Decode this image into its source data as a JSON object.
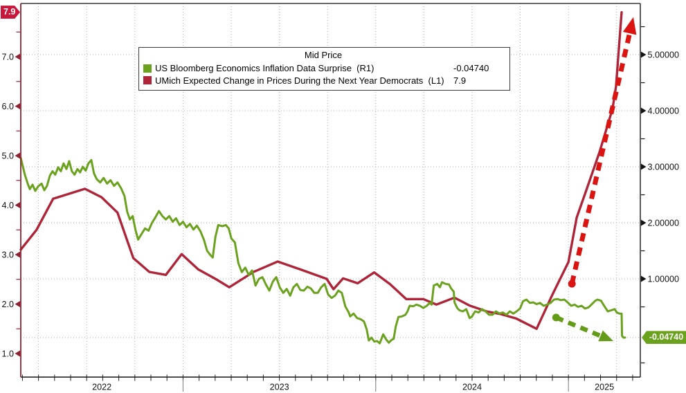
{
  "chart_data": {
    "type": "line",
    "title": "Mid Price",
    "colors": {
      "green_series": "#6aa11d",
      "red_series": "#ae2438",
      "red_arrow": "#dc1411",
      "green_arrow": "#649b18",
      "grid": "#ababab",
      "frame": "#141414",
      "left_axis": "#8f2232",
      "badge_left_bg": "#c9173c",
      "badge_right_bg": "#6aa11d",
      "year_divider": "#777777"
    },
    "legend": {
      "title": "Mid Price",
      "position": "top-center",
      "entries": [
        {
          "label": "US Bloomberg Economics Inflation Data Surprise  (R1)",
          "value": "-0.04740",
          "color": "#6aa11d",
          "axis": "right"
        },
        {
          "label": "UMich Expected Change in Prices During the Next Year Democrats  (L1)",
          "value": "7.9",
          "color": "#ae2438",
          "axis": "left"
        }
      ]
    },
    "x_axis": {
      "type": "time-years",
      "start": 2022.158,
      "end": 2025.373,
      "grid": "quarterly-dotted",
      "year_labels": [
        "2022",
        "2023",
        "2024",
        "2025"
      ],
      "year_boundaries": [
        2023,
        2024,
        2025
      ]
    },
    "left_axis": {
      "min": 0.524,
      "max": 8.077,
      "ticks": [
        7,
        6,
        5,
        4,
        3,
        2,
        1
      ],
      "tick_labels": [
        "7.0",
        "6.0",
        "5.0",
        "4.0",
        "3.0",
        "2.0",
        "1.0"
      ],
      "minor_ticks": [
        1.5,
        2.5,
        3.5,
        4.5,
        5.5,
        6.5,
        7.5
      ],
      "last_value": 7.9,
      "last_value_label": "7.9"
    },
    "right_axis": {
      "min": -0.753,
      "max": 5.914,
      "ticks": [
        5,
        4,
        3,
        2,
        1
      ],
      "tick_labels": [
        "5.00000",
        "4.00000",
        "3.00000",
        "2.00000",
        "1.00000"
      ],
      "minor_ticks": [
        -0.5,
        0.5,
        1.5,
        2.5,
        3.5,
        4.5,
        5.5
      ],
      "grid": true,
      "last_price_line": true,
      "last_value": -0.0474,
      "last_value_label": "-0.04740"
    },
    "series": [
      {
        "name": "UMich Expected Change in Prices During the Next Year Democrats",
        "data_name": "series-line-umich-expectations",
        "axis": "left",
        "color": "#ae2438",
        "width": 3.4,
        "points": [
          [
            2022.158,
            3.1
          ],
          [
            2022.24,
            3.5
          ],
          [
            2022.326,
            4.13
          ],
          [
            2022.409,
            4.23
          ],
          [
            2022.491,
            4.33
          ],
          [
            2022.577,
            4.16
          ],
          [
            2022.66,
            3.85
          ],
          [
            2022.742,
            2.93
          ],
          [
            2022.825,
            2.65
          ],
          [
            2022.911,
            2.59
          ],
          [
            2022.993,
            3.01
          ],
          [
            2023.079,
            2.7
          ],
          [
            2023.168,
            2.51
          ],
          [
            2023.24,
            2.34
          ],
          [
            2023.366,
            2.65
          ],
          [
            2023.491,
            2.86
          ],
          [
            2023.609,
            2.7
          ],
          [
            2023.745,
            2.51
          ],
          [
            2023.781,
            2.3
          ],
          [
            2023.831,
            2.52
          ],
          [
            2023.906,
            2.42
          ],
          [
            2023.992,
            2.64
          ],
          [
            2024.075,
            2.4
          ],
          [
            2024.158,
            2.1
          ],
          [
            2024.247,
            2.1
          ],
          [
            2024.315,
            1.99
          ],
          [
            2024.409,
            2.13
          ],
          [
            2024.487,
            1.97
          ],
          [
            2024.577,
            1.85
          ],
          [
            2024.646,
            1.8
          ],
          [
            2024.728,
            1.71
          ],
          [
            2024.835,
            1.5
          ],
          [
            2024.918,
            2.2
          ],
          [
            2025.0,
            2.85
          ],
          [
            2025.043,
            3.75
          ],
          [
            2025.09,
            4.27
          ],
          [
            2025.161,
            5.07
          ],
          [
            2025.229,
            5.95
          ],
          [
            2025.247,
            6.4
          ],
          [
            2025.276,
            7.9
          ]
        ]
      },
      {
        "name": "US Bloomberg Economics Inflation Data Surprise",
        "data_name": "series-line-inflation-surprise",
        "axis": "right",
        "color": "#6aa11d",
        "width": 3,
        "points": [
          [
            2022.158,
            3.16
          ],
          [
            2022.169,
            3.0
          ],
          [
            2022.18,
            2.85
          ],
          [
            2022.194,
            2.7
          ],
          [
            2022.205,
            2.6
          ],
          [
            2022.219,
            2.68
          ],
          [
            2022.233,
            2.57
          ],
          [
            2022.248,
            2.65
          ],
          [
            2022.266,
            2.7
          ],
          [
            2022.28,
            2.58
          ],
          [
            2022.294,
            2.66
          ],
          [
            2022.309,
            2.84
          ],
          [
            2022.323,
            2.92
          ],
          [
            2022.337,
            2.86
          ],
          [
            2022.352,
            2.99
          ],
          [
            2022.366,
            2.92
          ],
          [
            2022.38,
            3.06
          ],
          [
            2022.395,
            2.96
          ],
          [
            2022.409,
            3.1
          ],
          [
            2022.423,
            2.92
          ],
          [
            2022.437,
            2.86
          ],
          [
            2022.452,
            2.96
          ],
          [
            2022.466,
            2.9
          ],
          [
            2022.48,
            3.0
          ],
          [
            2022.495,
            2.93
          ],
          [
            2022.509,
            3.06
          ],
          [
            2022.524,
            3.12
          ],
          [
            2022.538,
            2.88
          ],
          [
            2022.552,
            2.78
          ],
          [
            2022.57,
            2.72
          ],
          [
            2022.588,
            2.8
          ],
          [
            2022.606,
            2.7
          ],
          [
            2022.624,
            2.76
          ],
          [
            2022.642,
            2.66
          ],
          [
            2022.66,
            2.72
          ],
          [
            2022.678,
            2.62
          ],
          [
            2022.696,
            2.48
          ],
          [
            2022.71,
            2.2
          ],
          [
            2022.724,
            2.06
          ],
          [
            2022.739,
            2.12
          ],
          [
            2022.753,
            1.88
          ],
          [
            2022.767,
            1.7
          ],
          [
            2022.785,
            1.8
          ],
          [
            2022.803,
            1.9
          ],
          [
            2022.821,
            1.86
          ],
          [
            2022.839,
            2.0
          ],
          [
            2022.857,
            2.1
          ],
          [
            2022.875,
            2.21
          ],
          [
            2022.893,
            2.12
          ],
          [
            2022.911,
            2.06
          ],
          [
            2022.929,
            2.12
          ],
          [
            2022.946,
            2.02
          ],
          [
            2022.964,
            2.08
          ],
          [
            2022.982,
            1.96
          ],
          [
            2023.0,
            2.02
          ],
          [
            2023.018,
            1.92
          ],
          [
            2023.036,
            1.98
          ],
          [
            2023.054,
            1.88
          ],
          [
            2023.072,
            1.95
          ],
          [
            2023.09,
            1.85
          ],
          [
            2023.108,
            1.7
          ],
          [
            2023.125,
            1.5
          ],
          [
            2023.143,
            1.42
          ],
          [
            2023.154,
            1.38
          ],
          [
            2023.168,
            1.75
          ],
          [
            2023.183,
            1.96
          ],
          [
            2023.204,
            1.94
          ],
          [
            2023.222,
            1.96
          ],
          [
            2023.237,
            1.9
          ],
          [
            2023.251,
            1.72
          ],
          [
            2023.269,
            1.65
          ],
          [
            2023.287,
            1.28
          ],
          [
            2023.305,
            1.12
          ],
          [
            2023.323,
            1.2
          ],
          [
            2023.341,
            1.07
          ],
          [
            2023.358,
            1.15
          ],
          [
            2023.376,
            0.88
          ],
          [
            2023.394,
            1.0
          ],
          [
            2023.412,
            1.03
          ],
          [
            2023.43,
            0.9
          ],
          [
            2023.448,
            0.79
          ],
          [
            2023.466,
            0.95
          ],
          [
            2023.484,
            1.03
          ],
          [
            2023.502,
            0.85
          ],
          [
            2023.52,
            0.75
          ],
          [
            2023.538,
            0.82
          ],
          [
            2023.556,
            0.7
          ],
          [
            2023.573,
            0.85
          ],
          [
            2023.591,
            0.91
          ],
          [
            2023.609,
            0.8
          ],
          [
            2023.627,
            0.79
          ],
          [
            2023.645,
            0.86
          ],
          [
            2023.663,
            0.83
          ],
          [
            2023.681,
            0.75
          ],
          [
            2023.699,
            0.75
          ],
          [
            2023.717,
            0.85
          ],
          [
            2023.735,
            0.91
          ],
          [
            2023.753,
            0.72
          ],
          [
            2023.771,
            0.66
          ],
          [
            2023.789,
            0.7
          ],
          [
            2023.806,
            0.79
          ],
          [
            2023.824,
            0.75
          ],
          [
            2023.842,
            0.51
          ],
          [
            2023.86,
            0.4
          ],
          [
            2023.867,
            0.33
          ],
          [
            2023.885,
            0.38
          ],
          [
            2023.903,
            0.3
          ],
          [
            2023.921,
            0.28
          ],
          [
            2023.939,
            0.24
          ],
          [
            2023.953,
            0.1
          ],
          [
            2023.964,
            -0.1
          ],
          [
            2023.978,
            -0.05
          ],
          [
            2023.993,
            -0.12
          ],
          [
            2024.007,
            -0.11
          ],
          [
            2024.021,
            -0.15
          ],
          [
            2024.039,
            0.01
          ],
          [
            2024.054,
            -0.08
          ],
          [
            2024.068,
            -0.14
          ],
          [
            2024.082,
            -0.09
          ],
          [
            2024.093,
            -0.07
          ],
          [
            2024.104,
            0.15
          ],
          [
            2024.118,
            0.32
          ],
          [
            2024.136,
            0.33
          ],
          [
            2024.154,
            0.36
          ],
          [
            2024.165,
            0.42
          ],
          [
            2024.176,
            0.52
          ],
          [
            2024.194,
            0.51
          ],
          [
            2024.211,
            0.54
          ],
          [
            2024.229,
            0.52
          ],
          [
            2024.247,
            0.48
          ],
          [
            2024.265,
            0.52
          ],
          [
            2024.28,
            0.57
          ],
          [
            2024.29,
            0.54
          ],
          [
            2024.301,
            0.88
          ],
          [
            2024.319,
            0.91
          ],
          [
            2024.333,
            0.85
          ],
          [
            2024.344,
            0.94
          ],
          [
            2024.362,
            0.91
          ],
          [
            2024.38,
            0.9
          ],
          [
            2024.391,
            0.83
          ],
          [
            2024.405,
            0.77
          ],
          [
            2024.409,
            0.58
          ],
          [
            2024.423,
            0.48
          ],
          [
            2024.434,
            0.44
          ],
          [
            2024.452,
            0.42
          ],
          [
            2024.47,
            0.46
          ],
          [
            2024.487,
            0.3
          ],
          [
            2024.498,
            0.32
          ],
          [
            2024.516,
            0.42
          ],
          [
            2024.534,
            0.4
          ],
          [
            2024.552,
            0.46
          ],
          [
            2024.57,
            0.42
          ],
          [
            2024.588,
            0.36
          ],
          [
            2024.606,
            0.36
          ],
          [
            2024.624,
            0.42
          ],
          [
            2024.642,
            0.38
          ],
          [
            2024.66,
            0.4
          ],
          [
            2024.678,
            0.36
          ],
          [
            2024.696,
            0.42
          ],
          [
            2024.714,
            0.38
          ],
          [
            2024.731,
            0.42
          ],
          [
            2024.749,
            0.47
          ],
          [
            2024.764,
            0.6
          ],
          [
            2024.782,
            0.63
          ],
          [
            2024.8,
            0.57
          ],
          [
            2024.817,
            0.58
          ],
          [
            2024.835,
            0.55
          ],
          [
            2024.853,
            0.57
          ],
          [
            2024.871,
            0.52
          ],
          [
            2024.889,
            0.54
          ],
          [
            2024.907,
            0.57
          ],
          [
            2024.925,
            0.63
          ],
          [
            2024.943,
            0.64
          ],
          [
            2024.961,
            0.62
          ],
          [
            2024.979,
            0.63
          ],
          [
            2024.996,
            0.58
          ],
          [
            2025.014,
            0.52
          ],
          [
            2025.032,
            0.54
          ],
          [
            2025.05,
            0.5
          ],
          [
            2025.068,
            0.52
          ],
          [
            2025.086,
            0.47
          ],
          [
            2025.104,
            0.49
          ],
          [
            2025.122,
            0.55
          ],
          [
            2025.14,
            0.61
          ],
          [
            2025.151,
            0.63
          ],
          [
            2025.169,
            0.61
          ],
          [
            2025.187,
            0.51
          ],
          [
            2025.204,
            0.42
          ],
          [
            2025.222,
            0.44
          ],
          [
            2025.24,
            0.46
          ],
          [
            2025.251,
            0.4
          ],
          [
            2025.265,
            0.38
          ],
          [
            2025.276,
            0.38
          ],
          [
            2025.278,
            -0.02
          ],
          [
            2025.287,
            -0.05
          ],
          [
            2025.294,
            -0.047
          ]
        ]
      }
    ],
    "annotations": [
      {
        "name": "red-up-arrow",
        "type": "arrow",
        "axis": "left",
        "color": "#dc1411",
        "from": [
          2025.018,
          2.41
        ],
        "to": [
          2025.337,
          7.8
        ],
        "stroke_width": 7,
        "dash": "12 9",
        "head_len": 24,
        "head_width": 20,
        "dot_r": 5.5
      },
      {
        "name": "green-down-arrow",
        "type": "arrow",
        "axis": "right",
        "color": "#649b18",
        "from": [
          2024.936,
          0.31
        ],
        "to": [
          2025.233,
          -0.111
        ],
        "stroke_width": 6.5,
        "dash": "11 8",
        "head_len": 20,
        "head_width": 17,
        "dot_r": 5.5
      }
    ]
  }
}
